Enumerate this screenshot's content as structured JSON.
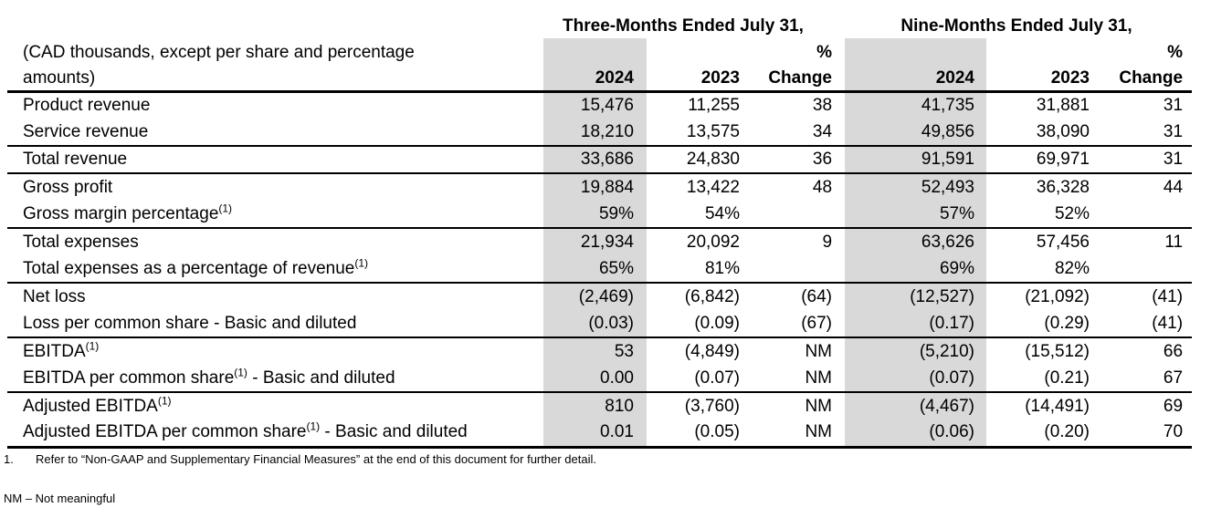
{
  "table": {
    "shade_color": "#d9d9d9",
    "period_headers": [
      "Three-Months Ended July 31,",
      "Nine-Months Ended July 31,"
    ],
    "note_line1": "(CAD thousands, except per share and percentage",
    "note_line2": "amounts)",
    "percent_symbol": "%",
    "column_headers": {
      "y2024": "2024",
      "y2023": "2023",
      "change": "Change"
    },
    "rows": [
      {
        "label": "Product revenue",
        "sup": "",
        "suffix": "",
        "values": [
          "15,476",
          "11,255",
          "38",
          "41,735",
          "31,881",
          "31"
        ]
      },
      {
        "label": "Service revenue",
        "sup": "",
        "suffix": "",
        "values": [
          "18,210",
          "13,575",
          "34",
          "49,856",
          "38,090",
          "31"
        ]
      },
      {
        "label": "Total revenue",
        "sup": "",
        "suffix": "",
        "values": [
          "33,686",
          "24,830",
          "36",
          "91,591",
          "69,971",
          "31"
        ]
      },
      {
        "label": "Gross profit",
        "sup": "",
        "suffix": "",
        "values": [
          "19,884",
          "13,422",
          "48",
          "52,493",
          "36,328",
          "44"
        ]
      },
      {
        "label": "Gross margin percentage",
        "sup": "(1)",
        "suffix": "",
        "values": [
          "59%",
          "54%",
          "",
          "57%",
          "52%",
          ""
        ]
      },
      {
        "label": "Total expenses",
        "sup": "",
        "suffix": "",
        "values": [
          "21,934",
          "20,092",
          "9",
          "63,626",
          "57,456",
          "11"
        ]
      },
      {
        "label": "Total expenses as a percentage of revenue",
        "sup": "(1)",
        "suffix": "",
        "values": [
          "65%",
          "81%",
          "",
          "69%",
          "82%",
          ""
        ]
      },
      {
        "label": "Net loss",
        "sup": "",
        "suffix": "",
        "values": [
          "(2,469)",
          "(6,842)",
          "(64)",
          "(12,527)",
          "(21,092)",
          "(41)"
        ]
      },
      {
        "label": "Loss per common share - Basic and diluted",
        "sup": "",
        "suffix": "",
        "values": [
          "(0.03)",
          "(0.09)",
          "(67)",
          "(0.17)",
          "(0.29)",
          "(41)"
        ]
      },
      {
        "label": "EBITDA",
        "sup": "(1)",
        "suffix": "",
        "values": [
          "53",
          "(4,849)",
          "NM",
          "(5,210)",
          "(15,512)",
          "66"
        ]
      },
      {
        "label": "EBITDA per common share",
        "sup": "(1)",
        "suffix": " - Basic and diluted",
        "values": [
          "0.00",
          "(0.07)",
          "NM",
          "(0.07)",
          "(0.21)",
          "67"
        ]
      },
      {
        "label": "Adjusted EBITDA",
        "sup": "(1)",
        "suffix": "",
        "values": [
          "810",
          "(3,760)",
          "NM",
          "(4,467)",
          "(14,491)",
          "69"
        ]
      },
      {
        "label": "Adjusted EBITDA per common share",
        "sup": "(1)",
        "suffix": " - Basic and diluted",
        "values": [
          "0.01",
          "(0.05)",
          "NM",
          "(0.06)",
          "(0.20)",
          "70"
        ]
      }
    ],
    "footnotes": {
      "item1_number": "1.",
      "item1_text": "Refer to “Non-GAAP and Supplementary Financial Measures” at the end of this document for further detail.",
      "nm_definition": "NM – Not meaningful"
    }
  }
}
